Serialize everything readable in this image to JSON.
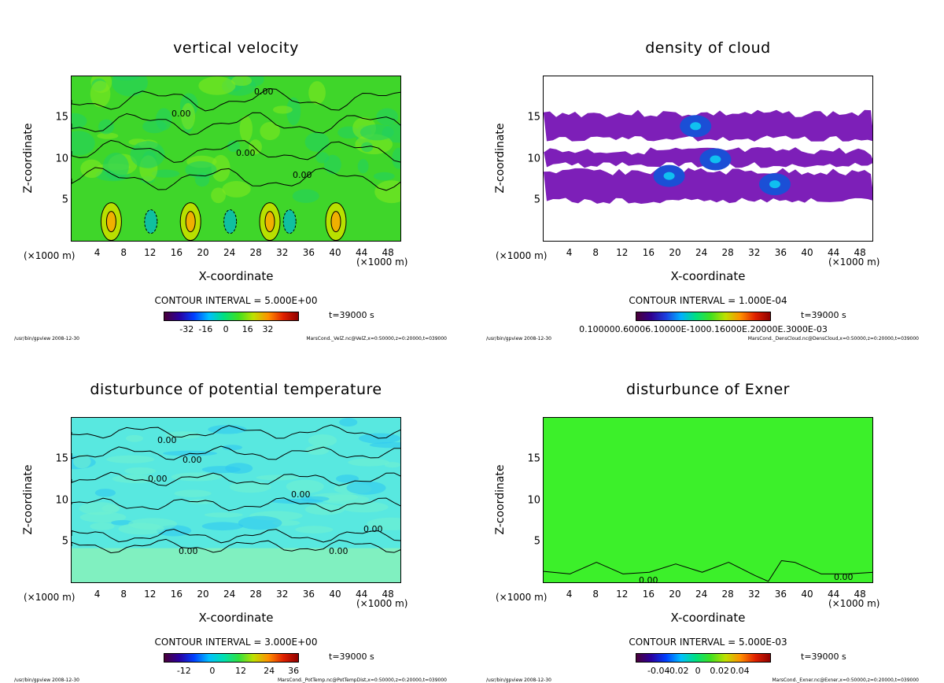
{
  "panels": [
    {
      "title": "vertical velocity",
      "ylabel": "Z-coordinate",
      "xlabel": "X-coordinate",
      "unit_left": "(×1000 m)",
      "unit_right": "(×1000 m)",
      "contour_interval": "CONTOUR INTERVAL = 5.000E+00",
      "time": "t=39000 s",
      "footer_left": "/usr/bin/gpview  2008-12-30",
      "footer_right": "MarsCond._VelZ.nc@VelZ,x=0:50000,z=0:20000,t=039000",
      "colorbar_ticks": [
        "-32",
        "-16",
        "0",
        "16",
        "32"
      ],
      "contour_labels": [
        "0.00",
        "0.00",
        "0.00",
        "0.00"
      ]
    },
    {
      "title": "density of cloud",
      "ylabel": "Z-coordinate",
      "xlabel": "X-coordinate",
      "unit_left": "(×1000 m)",
      "unit_right": "(×1000 m)",
      "contour_interval": "CONTOUR INTERVAL = 1.000E-04",
      "time": "t=39000 s",
      "footer_left": "/usr/bin/gpview  2008-12-30",
      "footer_right": "MarsCond._DensCloud.nc@DensCloud,x=0:50000,z=0:20000,t=039000",
      "colorbar_ticks": [
        "0.100000.60006.10000E-1000.16000E.20000E.3000E-03"
      ],
      "contour_labels": []
    },
    {
      "title": "disturbunce of potential temperature",
      "ylabel": "Z-coordinate",
      "xlabel": "X-coordinate",
      "unit_left": "(×1000 m)",
      "unit_right": "(×1000 m)",
      "contour_interval": "CONTOUR INTERVAL = 3.000E+00",
      "time": "t=39000 s",
      "footer_left": "/usr/bin/gpview  2008-12-30",
      "footer_right": "MarsCond._PotTemp.nc@PotTempDist,x=0:50000,z=0:20000,t=039000",
      "colorbar_ticks": [
        "-12",
        "0",
        "12",
        "24",
        "36"
      ],
      "contour_labels": [
        "0.00",
        "0.00",
        "0.00",
        "0.00",
        "0.00",
        "0.00",
        "0.00"
      ]
    },
    {
      "title": "disturbunce of Exner",
      "ylabel": "Z-coordinate",
      "xlabel": "X-coordinate",
      "unit_left": "(×1000 m)",
      "unit_right": "(×1000 m)",
      "contour_interval": "CONTOUR INTERVAL = 5.000E-03",
      "time": "t=39000 s",
      "footer_left": "/usr/bin/gpview  2008-12-30",
      "footer_right": "MarsCond._Exner.nc@Exner,x=0:50000,z=0:20000,t=039000",
      "colorbar_ticks": [
        "-0.04",
        "-0.02",
        "0",
        "0.02",
        "0.04"
      ],
      "contour_labels": [
        "0.00",
        "0.00"
      ]
    }
  ],
  "chart_data": [
    {
      "type": "heatmap",
      "title": "vertical velocity",
      "xlabel": "X-coordinate",
      "ylabel": "Z-coordinate",
      "x_ticks": [
        4,
        8,
        12,
        16,
        20,
        24,
        28,
        32,
        36,
        40,
        44,
        48
      ],
      "y_ticks": [
        5,
        10,
        15
      ],
      "xlim": [
        0,
        50
      ],
      "ylim": [
        0,
        20
      ],
      "colorbar_range": [
        -40,
        40
      ],
      "updraft_cores_x": [
        6,
        18,
        30,
        40
      ],
      "updraft_core_z": 2.5
    },
    {
      "type": "heatmap",
      "title": "density of cloud",
      "xlabel": "X-coordinate",
      "ylabel": "Z-coordinate",
      "x_ticks": [
        4,
        8,
        12,
        16,
        20,
        24,
        28,
        32,
        36,
        40,
        44,
        48
      ],
      "y_ticks": [
        5,
        10,
        15
      ],
      "xlim": [
        0,
        50
      ],
      "ylim": [
        0,
        20
      ],
      "cloud_layers_z": [
        [
          12.5,
          15.5
        ],
        [
          9.3,
          11
        ],
        [
          5,
          8.5
        ]
      ],
      "dense_cores": [
        [
          23,
          14
        ],
        [
          19,
          8
        ],
        [
          26,
          10
        ],
        [
          35,
          7
        ]
      ]
    },
    {
      "type": "heatmap",
      "title": "disturbunce of potential temperature",
      "xlabel": "X-coordinate",
      "ylabel": "Z-coordinate",
      "x_ticks": [
        4,
        8,
        12,
        16,
        20,
        24,
        28,
        32,
        36,
        40,
        44,
        48
      ],
      "y_ticks": [
        5,
        10,
        15
      ],
      "xlim": [
        0,
        50
      ],
      "ylim": [
        0,
        20
      ],
      "colorbar_range": [
        -18,
        42
      ]
    },
    {
      "type": "heatmap",
      "title": "disturbunce of Exner",
      "xlabel": "X-coordinate",
      "ylabel": "Z-coordinate",
      "x_ticks": [
        4,
        8,
        12,
        16,
        20,
        24,
        28,
        32,
        36,
        40,
        44,
        48
      ],
      "y_ticks": [
        5,
        10,
        15
      ],
      "xlim": [
        0,
        50
      ],
      "ylim": [
        0,
        20
      ],
      "colorbar_range": [
        -0.05,
        0.05
      ],
      "zero_contour": {
        "x": [
          0,
          4,
          8,
          12,
          16,
          20,
          24,
          28,
          32,
          34,
          36,
          38,
          42,
          46,
          50
        ],
        "z": [
          1.5,
          1.2,
          2.6,
          1.2,
          1.4,
          2.4,
          1.4,
          2.6,
          1.0,
          0.3,
          2.8,
          2.6,
          1.2,
          1.2,
          1.4
        ]
      }
    }
  ],
  "colors": {
    "vv_bg": "#3fd62a",
    "cloud_fill": "#7d1fb8",
    "cloud_core": "#1b4fd6",
    "pt_bg": "#58e8e0",
    "exner_bg": "#3cf02a"
  }
}
